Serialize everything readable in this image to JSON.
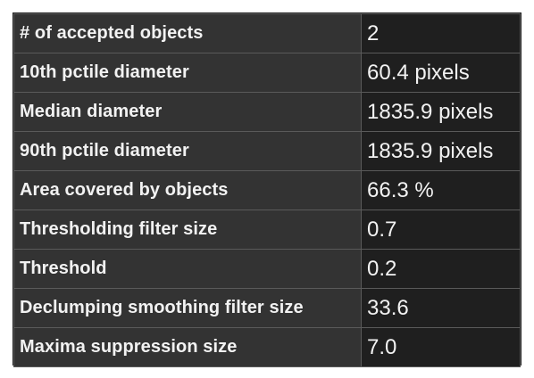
{
  "stats_table": {
    "rows": [
      {
        "label": "# of accepted objects",
        "value": "2"
      },
      {
        "label": "10th pctile diameter",
        "value": "60.4 pixels"
      },
      {
        "label": "Median diameter",
        "value": "1835.9 pixels"
      },
      {
        "label": "90th pctile diameter",
        "value": "1835.9 pixels"
      },
      {
        "label": "Area covered by objects",
        "value": "66.3 %"
      },
      {
        "label": "Thresholding filter size",
        "value": "0.7"
      },
      {
        "label": "Threshold",
        "value": "0.2"
      },
      {
        "label": "Declumping smoothing filter size",
        "value": "33.6"
      },
      {
        "label": "Maxima suppression size",
        "value": "7.0"
      }
    ]
  }
}
